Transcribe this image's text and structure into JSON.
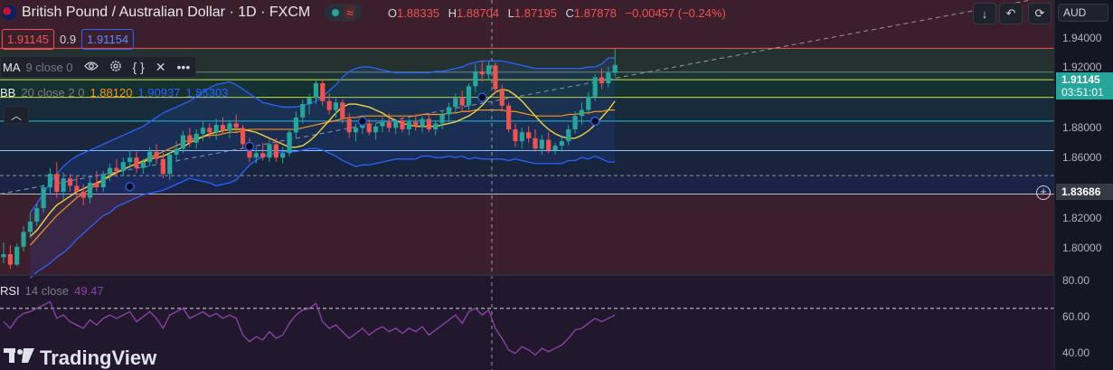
{
  "header": {
    "title": "British Pound / Australian Dollar · 1D · FXCM",
    "flag_icon": "gb-au-flag-icon",
    "status_icons": [
      "market-open-dot-icon",
      "replay-wave-icon"
    ],
    "ohlc": [
      {
        "key": "O",
        "value": "1.88335"
      },
      {
        "key": "H",
        "value": "1.88704"
      },
      {
        "key": "L",
        "value": "1.87195"
      },
      {
        "key": "C",
        "value": "1.87878"
      },
      {
        "key": "",
        "value": "−0.00457 (−0.24%)"
      }
    ],
    "value_color": "#ef5350"
  },
  "trade": {
    "sell": "1.91145",
    "spread": "0.9",
    "buy": "1.91154"
  },
  "indicators": {
    "ma": {
      "name": "MA",
      "params": "9 close 0"
    },
    "bb": {
      "name": "BB",
      "params": "20 close 2 0",
      "basis": "1.88120",
      "upper": "1.90937",
      "lower": "1.85303"
    },
    "rsi": {
      "name": "RSI",
      "params": "14 close",
      "value": "49.47"
    },
    "toolbar_icons": [
      "eye-icon",
      "settings-icon",
      "source-code-icon",
      "close-icon",
      "more-icon"
    ]
  },
  "right_toolbar": {
    "buttons": [
      "arrow-down-icon",
      "undo-icon",
      "redo-icon",
      "fullscreen-icon"
    ],
    "currency": "AUD"
  },
  "price_axis": {
    "ticks": [
      "1.94000",
      "1.92000",
      "1.88000",
      "1.86000",
      "1.82000",
      "1.80000"
    ],
    "last_price": "1.91145",
    "countdown": "03:51:01",
    "crosshair_price": "1.83686"
  },
  "rsi_axis": {
    "ticks": [
      "80.00",
      "60.00",
      "40.00"
    ]
  },
  "logo": {
    "text": "TradingView"
  },
  "colors": {
    "up": "#26a69a",
    "down": "#ef5350",
    "ma": "#f2d338",
    "bb_basis": "#f7941d",
    "bb_band": "#2962ff",
    "rsi": "#8e44ad",
    "background": "#131722"
  },
  "chart_data": {
    "type": "candlestick",
    "symbol": "GBPAUD",
    "ylim": [
      1.77,
      1.955
    ],
    "horizontal_levels": [
      1.9225,
      1.9065,
      1.9014,
      1.8895,
      1.8735,
      1.8537,
      1.8369,
      1.8245
    ],
    "candles": [
      [
        1.782,
        1.792,
        1.778,
        1.784
      ],
      [
        1.784,
        1.79,
        1.774,
        1.777
      ],
      [
        1.777,
        1.791,
        1.776,
        1.789
      ],
      [
        1.789,
        1.803,
        1.786,
        1.799
      ],
      [
        1.799,
        1.812,
        1.795,
        1.806
      ],
      [
        1.806,
        1.818,
        1.803,
        1.815
      ],
      [
        1.815,
        1.831,
        1.812,
        1.829
      ],
      [
        1.829,
        1.842,
        1.825,
        1.838
      ],
      [
        1.838,
        1.846,
        1.822,
        1.826
      ],
      [
        1.826,
        1.839,
        1.821,
        1.835
      ],
      [
        1.835,
        1.838,
        1.826,
        1.83
      ],
      [
        1.83,
        1.837,
        1.822,
        1.826
      ],
      [
        1.826,
        1.831,
        1.817,
        1.822
      ],
      [
        1.822,
        1.835,
        1.818,
        1.832
      ],
      [
        1.832,
        1.84,
        1.826,
        1.829
      ],
      [
        1.829,
        1.84,
        1.826,
        1.838
      ],
      [
        1.838,
        1.845,
        1.833,
        1.842
      ],
      [
        1.842,
        1.848,
        1.836,
        1.84
      ],
      [
        1.84,
        1.849,
        1.837,
        1.846
      ],
      [
        1.846,
        1.854,
        1.842,
        1.849
      ],
      [
        1.849,
        1.853,
        1.839,
        1.842
      ],
      [
        1.842,
        1.848,
        1.838,
        1.846
      ],
      [
        1.846,
        1.856,
        1.843,
        1.853
      ],
      [
        1.853,
        1.858,
        1.845,
        1.848
      ],
      [
        1.848,
        1.852,
        1.835,
        1.838
      ],
      [
        1.838,
        1.853,
        1.834,
        1.851
      ],
      [
        1.851,
        1.86,
        1.846,
        1.855
      ],
      [
        1.855,
        1.867,
        1.852,
        1.864
      ],
      [
        1.864,
        1.869,
        1.856,
        1.859
      ],
      [
        1.859,
        1.868,
        1.855,
        1.865
      ],
      [
        1.865,
        1.873,
        1.86,
        1.869
      ],
      [
        1.869,
        1.872,
        1.862,
        1.866
      ],
      [
        1.866,
        1.875,
        1.861,
        1.871
      ],
      [
        1.871,
        1.876,
        1.865,
        1.867
      ],
      [
        1.867,
        1.874,
        1.862,
        1.872
      ],
      [
        1.872,
        1.878,
        1.866,
        1.869
      ],
      [
        1.869,
        1.871,
        1.855,
        1.858
      ],
      [
        1.858,
        1.862,
        1.846,
        1.849
      ],
      [
        1.849,
        1.856,
        1.845,
        1.852
      ],
      [
        1.852,
        1.859,
        1.847,
        1.849
      ],
      [
        1.849,
        1.861,
        1.846,
        1.858
      ],
      [
        1.858,
        1.862,
        1.846,
        1.849
      ],
      [
        1.849,
        1.856,
        1.845,
        1.852
      ],
      [
        1.852,
        1.868,
        1.85,
        1.866
      ],
      [
        1.866,
        1.88,
        1.862,
        1.876
      ],
      [
        1.876,
        1.888,
        1.872,
        1.885
      ],
      [
        1.885,
        1.892,
        1.878,
        1.889
      ],
      [
        1.889,
        1.902,
        1.885,
        1.899
      ],
      [
        1.899,
        1.902,
        1.884,
        1.887
      ],
      [
        1.887,
        1.892,
        1.878,
        1.881
      ],
      [
        1.881,
        1.889,
        1.876,
        1.886
      ],
      [
        1.886,
        1.888,
        1.872,
        1.875
      ],
      [
        1.875,
        1.879,
        1.862,
        1.866
      ],
      [
        1.866,
        1.872,
        1.86,
        1.869
      ],
      [
        1.869,
        1.876,
        1.865,
        1.872
      ],
      [
        1.872,
        1.875,
        1.864,
        1.866
      ],
      [
        1.866,
        1.872,
        1.861,
        1.87
      ],
      [
        1.87,
        1.876,
        1.866,
        1.873
      ],
      [
        1.873,
        1.879,
        1.866,
        1.869
      ],
      [
        1.869,
        1.875,
        1.865,
        1.874
      ],
      [
        1.874,
        1.876,
        1.866,
        1.868
      ],
      [
        1.868,
        1.875,
        1.864,
        1.873
      ],
      [
        1.873,
        1.878,
        1.867,
        1.87
      ],
      [
        1.87,
        1.877,
        1.866,
        1.875
      ],
      [
        1.875,
        1.879,
        1.866,
        1.868
      ],
      [
        1.868,
        1.874,
        1.864,
        1.872
      ],
      [
        1.872,
        1.88,
        1.868,
        1.878
      ],
      [
        1.878,
        1.886,
        1.873,
        1.883
      ],
      [
        1.883,
        1.892,
        1.879,
        1.889
      ],
      [
        1.889,
        1.894,
        1.88,
        1.884
      ],
      [
        1.884,
        1.899,
        1.881,
        1.897
      ],
      [
        1.897,
        1.912,
        1.893,
        1.907
      ],
      [
        1.907,
        1.914,
        1.9,
        1.905
      ],
      [
        1.905,
        1.914,
        1.901,
        1.911
      ],
      [
        1.911,
        1.913,
        1.892,
        1.895
      ],
      [
        1.895,
        1.898,
        1.88,
        1.884
      ],
      [
        1.884,
        1.886,
        1.866,
        1.868
      ],
      [
        1.868,
        1.872,
        1.856,
        1.86
      ],
      [
        1.86,
        1.869,
        1.855,
        1.866
      ],
      [
        1.866,
        1.87,
        1.859,
        1.862
      ],
      [
        1.862,
        1.868,
        1.853,
        1.855
      ],
      [
        1.855,
        1.864,
        1.851,
        1.861
      ],
      [
        1.861,
        1.866,
        1.852,
        1.854
      ],
      [
        1.854,
        1.859,
        1.851,
        1.857
      ],
      [
        1.857,
        1.864,
        1.853,
        1.86
      ],
      [
        1.86,
        1.871,
        1.857,
        1.868
      ],
      [
        1.868,
        1.88,
        1.865,
        1.877
      ],
      [
        1.877,
        1.886,
        1.871,
        1.881
      ],
      [
        1.881,
        1.893,
        1.878,
        1.89
      ],
      [
        1.89,
        1.905,
        1.887,
        1.903
      ],
      [
        1.903,
        1.909,
        1.895,
        1.899
      ],
      [
        1.899,
        1.91,
        1.896,
        1.906
      ],
      [
        1.906,
        1.922,
        1.903,
        1.9114
      ]
    ],
    "ma_values": [
      1.796,
      1.8,
      1.806,
      1.812,
      1.817,
      1.82,
      1.823,
      1.826,
      1.828,
      1.83,
      1.832,
      1.834,
      1.837,
      1.839,
      1.841,
      1.843,
      1.845,
      1.846,
      1.848,
      1.849,
      1.85,
      1.852,
      1.854,
      1.856,
      1.859,
      1.861,
      1.863,
      1.865,
      1.866,
      1.867,
      1.868,
      1.868,
      1.868,
      1.867,
      1.866,
      1.864,
      1.862,
      1.86,
      1.858,
      1.856,
      1.856,
      1.857,
      1.86,
      1.864,
      1.869,
      1.874,
      1.879,
      1.883,
      1.885,
      1.885,
      1.884,
      1.883,
      1.881,
      1.879,
      1.876,
      1.874,
      1.872,
      1.871,
      1.87,
      1.87,
      1.87,
      1.87,
      1.871,
      1.872,
      1.873,
      1.875,
      1.877,
      1.88,
      1.884,
      1.889,
      1.893,
      1.895,
      1.894,
      1.891,
      1.887,
      1.882,
      1.877,
      1.872,
      1.868,
      1.865,
      1.863,
      1.862,
      1.862,
      1.864,
      1.867,
      1.871,
      1.876,
      1.881,
      1.887
    ],
    "bb_basis": [
      1.79,
      1.795,
      1.8,
      1.805,
      1.81,
      1.814,
      1.818,
      1.822,
      1.825,
      1.828,
      1.831,
      1.834,
      1.836,
      1.839,
      1.841,
      1.843,
      1.845,
      1.847,
      1.849,
      1.851,
      1.853,
      1.855,
      1.857,
      1.859,
      1.861,
      1.862,
      1.863,
      1.864,
      1.864,
      1.865,
      1.866,
      1.866,
      1.867,
      1.868,
      1.868,
      1.868,
      1.868,
      1.868,
      1.868,
      1.868,
      1.868,
      1.869,
      1.87,
      1.871,
      1.872,
      1.873,
      1.874,
      1.875,
      1.876,
      1.876,
      1.877,
      1.877,
      1.877,
      1.877,
      1.877,
      1.877,
      1.877,
      1.877,
      1.877,
      1.878,
      1.878,
      1.878,
      1.878,
      1.879,
      1.879,
      1.88,
      1.88,
      1.881,
      1.881,
      1.881,
      1.881,
      1.881,
      1.88,
      1.88,
      1.879,
      1.878,
      1.877,
      1.877,
      1.877,
      1.877,
      1.877,
      1.878,
      1.878,
      1.879,
      1.879,
      1.88,
      1.88,
      1.881,
      1.881
    ],
    "bb_upper": [
      1.812,
      1.818,
      1.825,
      1.832,
      1.838,
      1.843,
      1.847,
      1.85,
      1.852,
      1.854,
      1.856,
      1.858,
      1.86,
      1.862,
      1.864,
      1.866,
      1.868,
      1.87,
      1.873,
      1.876,
      1.879,
      1.881,
      1.883,
      1.885,
      1.887,
      1.89,
      1.893,
      1.896,
      1.898,
      1.899,
      1.9,
      1.898,
      1.895,
      1.892,
      1.889,
      1.886,
      1.885,
      1.884,
      1.883,
      1.883,
      1.883,
      1.884,
      1.885,
      1.887,
      1.89,
      1.894,
      1.898,
      1.903,
      1.907,
      1.909,
      1.91,
      1.91,
      1.909,
      1.908,
      1.907,
      1.906,
      1.906,
      1.906,
      1.906,
      1.906,
      1.906,
      1.907,
      1.907,
      1.908,
      1.909,
      1.91,
      1.912,
      1.913,
      1.914,
      1.914,
      1.914,
      1.914,
      1.913,
      1.912,
      1.911,
      1.91,
      1.909,
      1.909,
      1.909,
      1.909,
      1.909,
      1.909,
      1.909,
      1.909,
      1.91,
      1.91,
      1.912,
      1.916,
      1.916
    ],
    "bb_lower": [
      1.768,
      1.772,
      1.775,
      1.778,
      1.782,
      1.785,
      1.789,
      1.794,
      1.798,
      1.802,
      1.806,
      1.81,
      1.812,
      1.816,
      1.818,
      1.82,
      1.822,
      1.824,
      1.825,
      1.826,
      1.827,
      1.829,
      1.831,
      1.833,
      1.835,
      1.834,
      1.833,
      1.832,
      1.83,
      1.831,
      1.832,
      1.834,
      1.839,
      1.844,
      1.847,
      1.85,
      1.851,
      1.852,
      1.853,
      1.853,
      1.853,
      1.854,
      1.855,
      1.855,
      1.854,
      1.852,
      1.85,
      1.847,
      1.845,
      1.843,
      1.844,
      1.844,
      1.845,
      1.846,
      1.847,
      1.848,
      1.848,
      1.848,
      1.848,
      1.85,
      1.85,
      1.849,
      1.849,
      1.85,
      1.849,
      1.85,
      1.848,
      1.849,
      1.848,
      1.848,
      1.848,
      1.848,
      1.847,
      1.848,
      1.847,
      1.846,
      1.845,
      1.845,
      1.845,
      1.845,
      1.845,
      1.847,
      1.847,
      1.849,
      1.848,
      1.85,
      1.848,
      1.846,
      1.846
    ],
    "rsi_values": [
      62,
      58,
      64,
      67,
      68,
      70,
      72,
      74,
      64,
      66,
      62,
      60,
      58,
      63,
      60,
      64,
      66,
      64,
      66,
      68,
      62,
      65,
      68,
      64,
      58,
      66,
      68,
      70,
      64,
      66,
      68,
      65,
      67,
      64,
      66,
      64,
      54,
      50,
      53,
      51,
      56,
      52,
      54,
      61,
      66,
      69,
      70,
      73,
      62,
      58,
      60,
      56,
      52,
      55,
      58,
      54,
      57,
      59,
      56,
      58,
      55,
      58,
      56,
      59,
      54,
      57,
      60,
      63,
      66,
      61,
      68,
      70,
      66,
      69,
      58,
      52,
      45,
      43,
      47,
      45,
      42,
      46,
      44,
      46,
      48,
      52,
      57,
      58,
      61,
      64,
      62,
      64,
      66
    ],
    "rsi_ylim": [
      33,
      90
    ],
    "rsi_levels": [
      70
    ]
  }
}
